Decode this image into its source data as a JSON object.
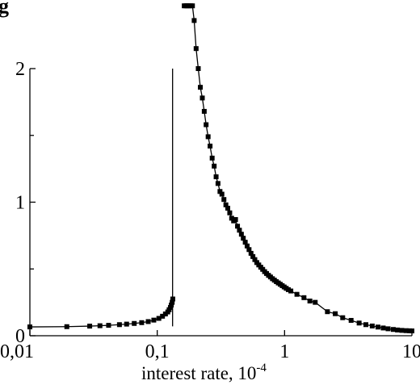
{
  "chart_data": {
    "type": "line",
    "title_prefix": "g",
    "title_rest": "",
    "xlabel": "interest rate, 10",
    "xlabel_exponent": "-4",
    "x_scale": "log",
    "xlim": [
      0.01,
      10
    ],
    "ylim": [
      0,
      2.5
    ],
    "x_ticks": [
      {
        "value": 0.01,
        "label": "0,01"
      },
      {
        "value": 0.1,
        "label": "0,1"
      },
      {
        "value": 1,
        "label": "1"
      },
      {
        "value": 10,
        "label": "10"
      }
    ],
    "y_ticks": [
      {
        "value": 0,
        "label": "0"
      },
      {
        "value": 1,
        "label": "1"
      },
      {
        "value": 2,
        "label": "2"
      }
    ],
    "y_minor_ticks": [
      0.5,
      1.5
    ],
    "grid": false,
    "legend": "none",
    "vertical_line": {
      "x": 0.132,
      "y_from": 0.07,
      "y_to": 2.0
    },
    "series": [
      {
        "x": [
          0.01,
          0.0195,
          0.0295,
          0.0355,
          0.0415,
          0.0505,
          0.0575,
          0.066,
          0.0755,
          0.085,
          0.094,
          0.103,
          0.11,
          0.116,
          0.121,
          0.124,
          0.127,
          0.129,
          0.131,
          0.1325
        ],
        "y": [
          0.066,
          0.068,
          0.072,
          0.075,
          0.078,
          0.083,
          0.087,
          0.092,
          0.098,
          0.106,
          0.117,
          0.13,
          0.146,
          0.163,
          0.178,
          0.195,
          0.212,
          0.23,
          0.25,
          0.275
        ]
      },
      {
        "x": [
          0.163,
          0.168,
          0.172,
          0.177,
          0.183,
          0.189,
          0.195,
          0.202,
          0.21,
          0.218,
          0.226,
          0.234,
          0.242,
          0.251,
          0.26,
          0.27,
          0.28,
          0.29,
          0.3,
          0.311,
          0.322,
          0.334,
          0.346,
          0.358,
          0.371,
          0.384,
          0.398,
          0.412,
          0.427,
          0.442,
          0.458,
          0.474,
          0.491,
          0.508,
          0.526,
          0.545,
          0.564,
          0.584,
          0.605,
          0.627,
          0.65,
          0.673,
          0.697,
          0.722,
          0.748,
          0.775,
          0.803,
          0.832,
          0.862,
          0.893,
          0.925,
          0.958,
          0.993,
          1.03,
          1.07,
          1.12,
          1.25,
          1.42,
          1.58,
          1.74,
          2.17,
          2.5,
          2.86,
          3.33,
          3.85,
          4.35,
          4.88,
          5.41,
          5.95,
          6.5,
          7.14,
          7.7,
          8.33,
          9.0,
          9.6,
          10.0
        ],
        "y": [
          2.47,
          2.47,
          2.47,
          2.47,
          2.47,
          2.47,
          2.36,
          2.15,
          2.0,
          1.86,
          1.78,
          1.68,
          1.58,
          1.49,
          1.42,
          1.33,
          1.27,
          1.19,
          1.14,
          1.08,
          1.06,
          1.02,
          0.98,
          0.955,
          0.92,
          0.88,
          0.86,
          0.87,
          0.82,
          0.79,
          0.76,
          0.73,
          0.7,
          0.672,
          0.645,
          0.617,
          0.593,
          0.57,
          0.548,
          0.53,
          0.513,
          0.497,
          0.48,
          0.466,
          0.452,
          0.44,
          0.427,
          0.416,
          0.405,
          0.395,
          0.385,
          0.375,
          0.365,
          0.355,
          0.345,
          0.335,
          0.31,
          0.285,
          0.26,
          0.25,
          0.18,
          0.165,
          0.135,
          0.115,
          0.095,
          0.083,
          0.073,
          0.065,
          0.058,
          0.052,
          0.047,
          0.043,
          0.04,
          0.038,
          0.037,
          0.036
        ]
      }
    ]
  }
}
